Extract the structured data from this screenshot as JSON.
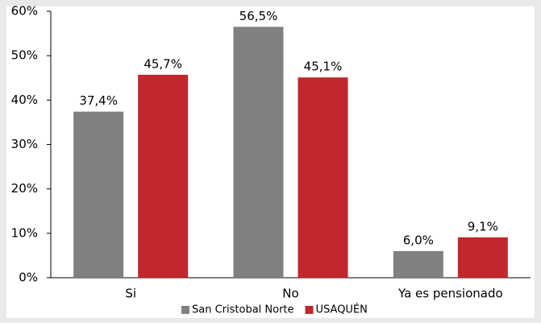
{
  "chart_data": {
    "type": "bar",
    "categories": [
      "Si",
      "No",
      "Ya es pensionado"
    ],
    "series": [
      {
        "name": "San Cristobal Norte",
        "color": "#808080",
        "values": [
          37.4,
          56.5,
          6.0
        ],
        "value_labels": [
          "37,4%",
          "56,5%",
          "6,0%"
        ]
      },
      {
        "name": "USAQUÉN",
        "color": "#c1272d",
        "values": [
          45.7,
          45.1,
          9.1
        ],
        "value_labels": [
          "45,7%",
          "45,1%",
          "9,1%"
        ]
      }
    ],
    "ylim": [
      0,
      60
    ],
    "yticks": [
      {
        "value": 0,
        "label": "0%"
      },
      {
        "value": 10,
        "label": "10%"
      },
      {
        "value": 20,
        "label": "20%"
      },
      {
        "value": 30,
        "label": "30%"
      },
      {
        "value": 40,
        "label": "40%"
      },
      {
        "value": 50,
        "label": "50%"
      },
      {
        "value": 60,
        "label": "60%"
      }
    ],
    "grid": false,
    "legend": "bottom"
  }
}
